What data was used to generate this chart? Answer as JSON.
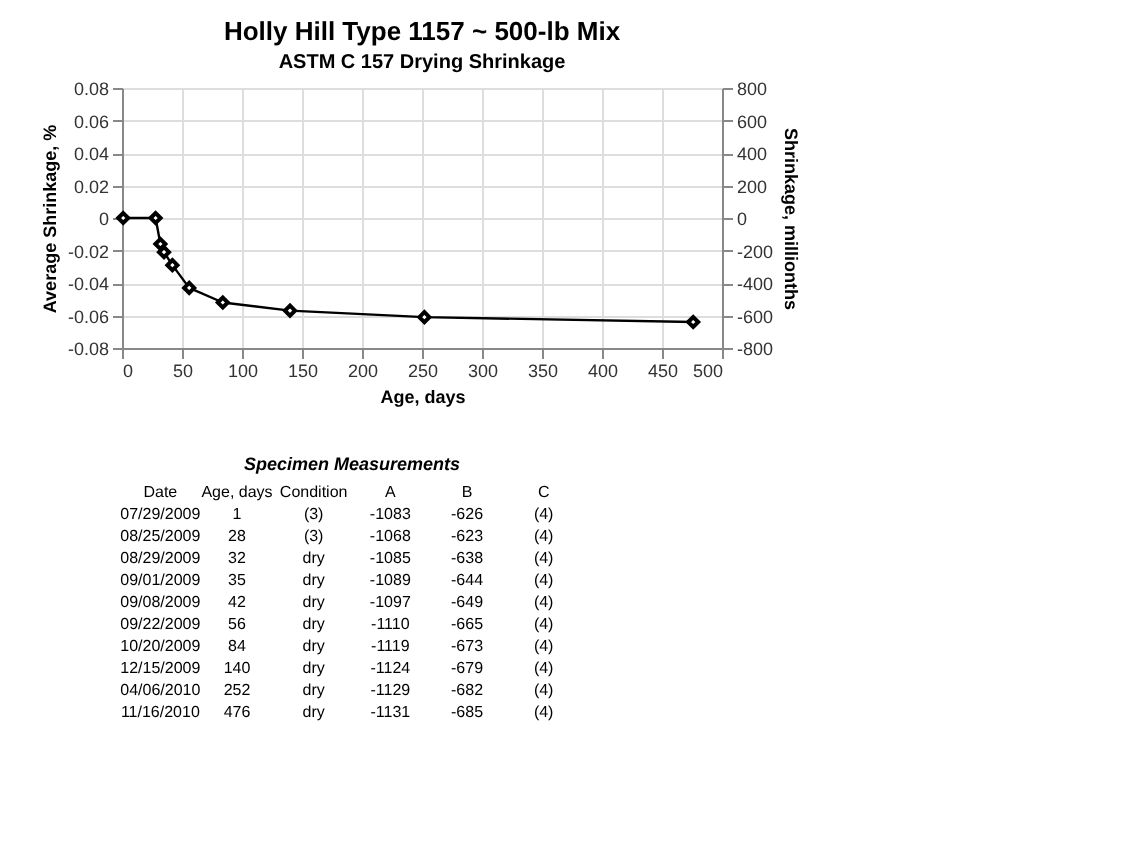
{
  "chart_data": [
    {
      "type": "line",
      "title": "Holly Hill Type 1157 ~ 500-lb Mix",
      "subtitle": "ASTM C 157 Drying Shrinkage",
      "xlabel": "Age, days",
      "ylabel": "Average Shrinkage, %",
      "y2label": "Shrinkage, millionths",
      "x": [
        1,
        28,
        32,
        35,
        42,
        56,
        84,
        140,
        252,
        476
      ],
      "series": [
        {
          "color": "#000000",
          "values": [
            0,
            0,
            -0.016,
            -0.021,
            -0.029,
            -0.043,
            -0.052,
            -0.057,
            -0.061,
            -0.064
          ]
        }
      ],
      "xlim": [
        0,
        500
      ],
      "xticks": [
        0,
        50,
        100,
        150,
        200,
        250,
        300,
        350,
        400,
        450,
        500
      ],
      "ylim": [
        -0.08,
        0.08
      ],
      "yticks": [
        -0.08,
        -0.06,
        -0.04,
        -0.02,
        0,
        0.02,
        0.04,
        0.06,
        0.08
      ],
      "y2lim": [
        -800,
        800
      ],
      "y2ticks": [
        -800,
        -600,
        -400,
        -200,
        0,
        200,
        400,
        600,
        800
      ],
      "grid": true,
      "marker": "diamond",
      "line_style": "solid"
    },
    {
      "type": "other",
      "title": "Specimen Measurements",
      "categories": [
        "Date",
        "Age, days",
        "Condition",
        "A",
        "B",
        "C"
      ],
      "annotations": [
        "07/29/2009",
        "1",
        "(3)",
        "-1083",
        "-626",
        "(4)",
        "08/25/2009",
        "28",
        "(3)",
        "-1068",
        "-623",
        "(4)",
        "08/29/2009",
        "32",
        "dry",
        "-1085",
        "-638",
        "(4)",
        "09/01/2009",
        "35",
        "dry",
        "-1089",
        "-644",
        "(4)",
        "09/08/2009",
        "42",
        "dry",
        "-1097",
        "-649",
        "(4)",
        "09/22/2009",
        "56",
        "dry",
        "-1110",
        "-665",
        "(4)",
        "10/20/2009",
        "84",
        "dry",
        "-1119",
        "-673",
        "(4)",
        "12/15/2009",
        "140",
        "dry",
        "-1124",
        "-679",
        "(4)",
        "04/06/2010",
        "252",
        "dry",
        "-1129",
        "-682",
        "(4)",
        "11/16/2010",
        "476",
        "dry",
        "-1131",
        "-685",
        "(4)"
      ]
    }
  ]
}
